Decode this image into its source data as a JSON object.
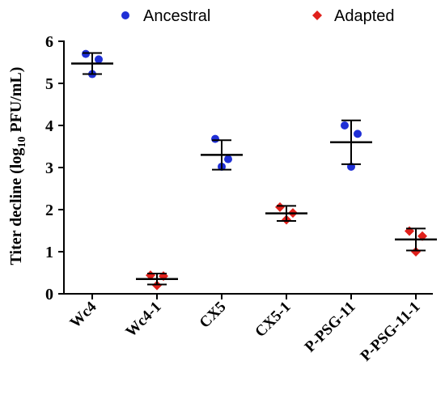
{
  "chart_data": {
    "type": "scatter",
    "ylabel_prefix": "Titer decline (log",
    "ylabel_sub": "10",
    "ylabel_suffix": " PFU/mL)",
    "ylim": [
      0,
      6
    ],
    "yticks": [
      "0",
      "1",
      "2",
      "3",
      "4",
      "5",
      "6"
    ],
    "categories": [
      "Wc4",
      "Wc4-1",
      "CX5",
      "CX5-1",
      "P-PSG-11",
      "P-PSG-11-1"
    ],
    "legend": [
      {
        "name": "Ancestral",
        "color": "#1f2fd6",
        "marker": "circle"
      },
      {
        "name": "Adapted",
        "color": "#e0201b",
        "marker": "diamond"
      }
    ],
    "groups": [
      {
        "category": "Wc4",
        "series": "Ancestral",
        "mean": 5.47,
        "sd": 0.25,
        "points": [
          5.7,
          5.57,
          5.22
        ]
      },
      {
        "category": "Wc4-1",
        "series": "Adapted",
        "mean": 0.35,
        "sd": 0.13,
        "points": [
          0.44,
          0.42,
          0.2
        ]
      },
      {
        "category": "CX5",
        "series": "Ancestral",
        "mean": 3.3,
        "sd": 0.35,
        "points": [
          3.68,
          3.2,
          3.02
        ]
      },
      {
        "category": "CX5-1",
        "series": "Adapted",
        "mean": 1.91,
        "sd": 0.18,
        "points": [
          2.06,
          1.92,
          1.76
        ]
      },
      {
        "category": "P-PSG-11",
        "series": "Ancestral",
        "mean": 3.6,
        "sd": 0.52,
        "points": [
          4.0,
          3.8,
          3.02
        ]
      },
      {
        "category": "P-PSG-11-1",
        "series": "Adapted",
        "mean": 1.29,
        "sd": 0.26,
        "points": [
          1.49,
          1.37,
          1.0
        ]
      }
    ]
  }
}
